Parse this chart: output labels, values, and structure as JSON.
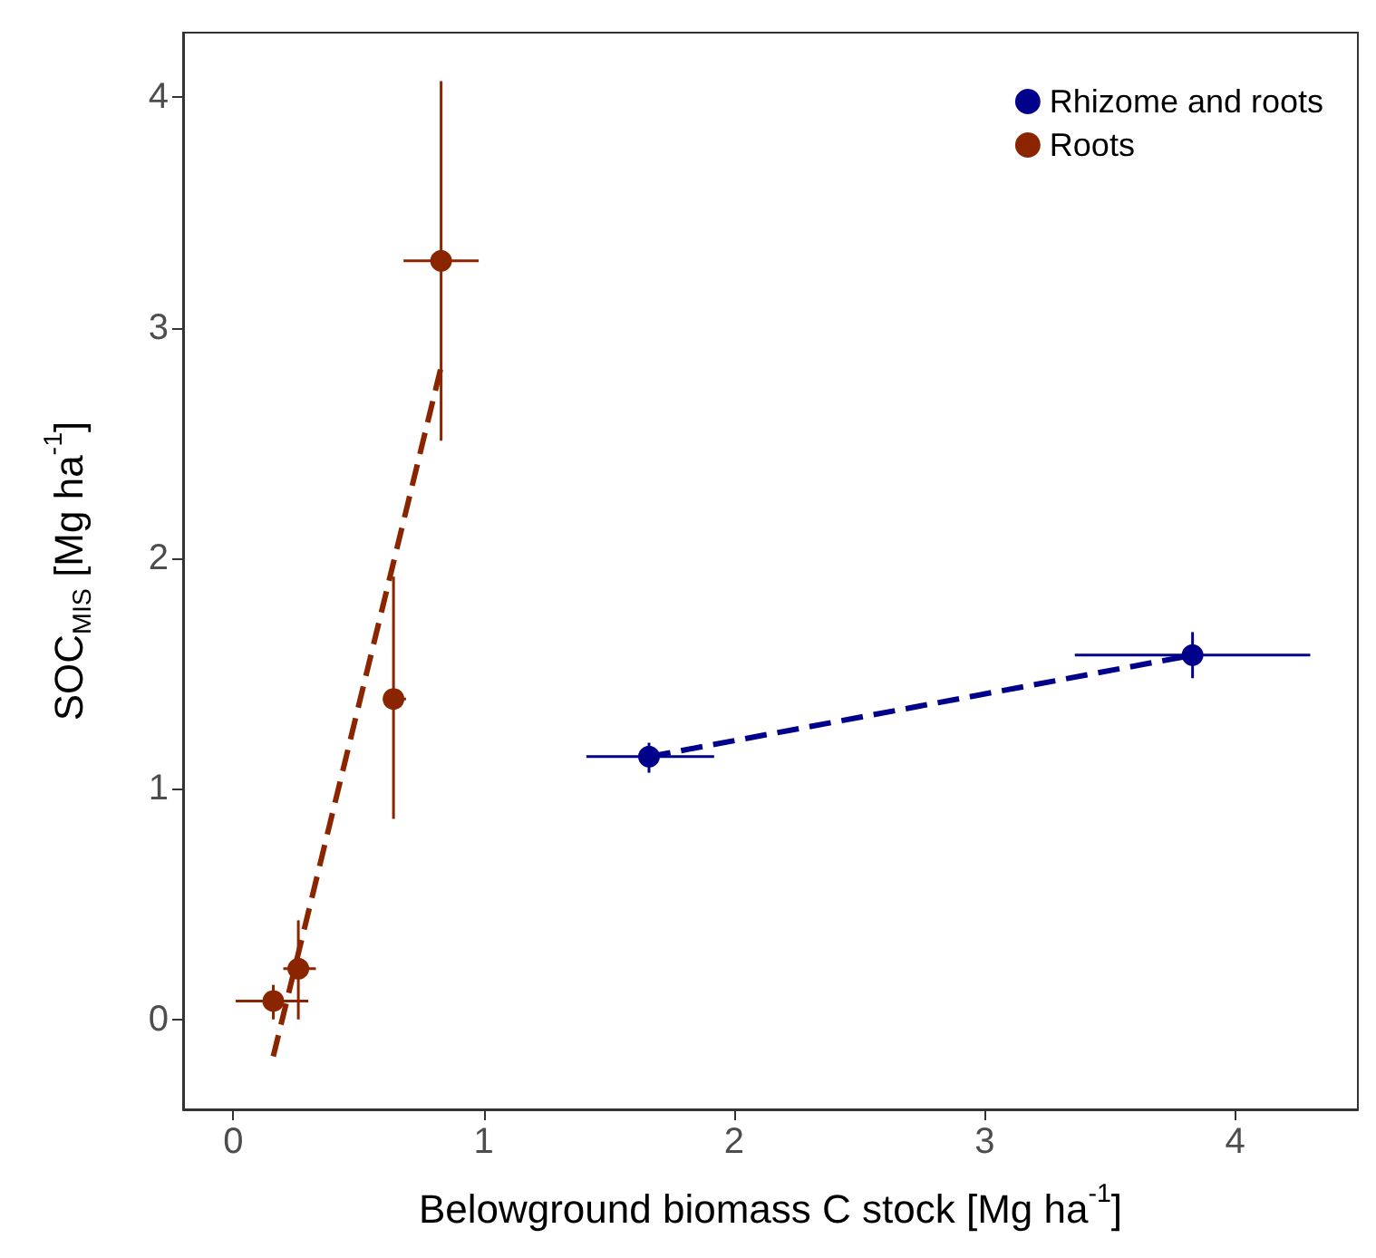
{
  "chart_data": {
    "type": "scatter",
    "xlabel": "Belowground biomass C stock [Mg ha$^{-1}$]",
    "ylabel": "SOC$_{MIS}$ [Mg ha$^{-1}$]",
    "xlim": [
      -0.2,
      4.49
    ],
    "ylim": [
      -0.39,
      4.28
    ],
    "xticks": [
      0,
      1,
      2,
      3,
      4
    ],
    "yticks": [
      0,
      1,
      2,
      3,
      4
    ],
    "grid": false,
    "legend": "top right",
    "series": [
      {
        "name": "Rhizome and roots",
        "marker": "circle",
        "color": "#00008b",
        "x": [
          1.66,
          3.83
        ],
        "values": [
          1.14,
          1.58
        ],
        "errors": [
          [
            1.07,
            1.2
          ],
          [
            1.48,
            1.68
          ]
        ],
        "xerrors": [
          [
            1.41,
            1.92
          ],
          [
            3.36,
            4.3
          ]
        ]
      },
      {
        "name": "Roots",
        "marker": "circle",
        "color": "#8b2500",
        "x": [
          0.16,
          0.26,
          0.64,
          0.83
        ],
        "values": [
          0.08,
          0.22,
          1.39,
          3.29
        ],
        "errors": [
          [
            0,
            0.15
          ],
          [
            0,
            0.43
          ],
          [
            0.87,
            1.92
          ],
          [
            2.51,
            4.07
          ]
        ],
        "xerrors": [
          [
            0.01,
            0.3
          ],
          [
            0.2,
            0.33
          ],
          [
            0.62,
            0.69
          ],
          [
            0.68,
            0.98
          ]
        ]
      },
      {
        "type": "line",
        "color": "#00008b",
        "line_style": "dashed",
        "x": [
          1.66,
          3.83
        ],
        "values": [
          1.14,
          1.58
        ]
      },
      {
        "type": "line",
        "color": "#8b2500",
        "line_style": "dashed",
        "x": [
          0.16,
          0.83
        ],
        "values": [
          -0.16,
          2.83
        ]
      }
    ]
  }
}
